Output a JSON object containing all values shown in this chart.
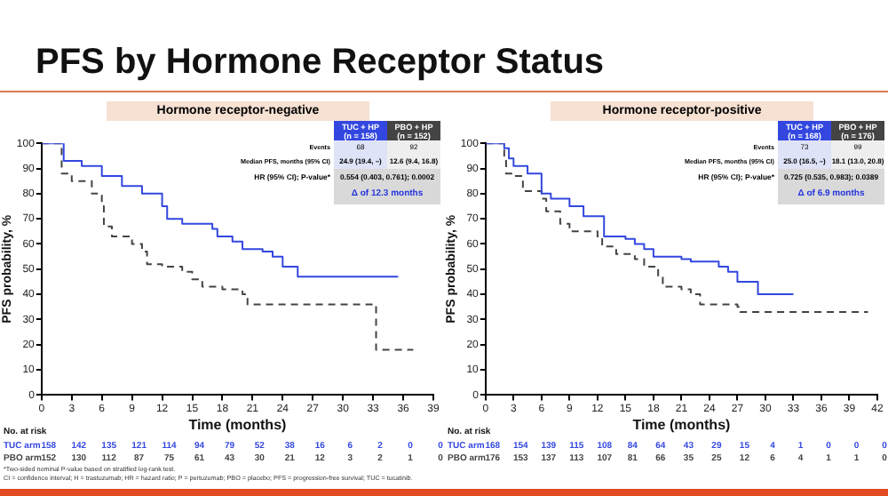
{
  "chart_data": [
    {
      "type": "step",
      "title": "Hormone receptor-negative",
      "xlabel": "Time (months)",
      "ylabel": "PFS probability, %",
      "xlim": [
        0,
        39
      ],
      "xticks": [
        0,
        3,
        6,
        9,
        12,
        15,
        18,
        21,
        24,
        27,
        30,
        33,
        36,
        39
      ],
      "ylim": [
        0,
        100
      ],
      "yticks": [
        0,
        10,
        20,
        30,
        40,
        50,
        60,
        70,
        80,
        90,
        100
      ],
      "grid": false,
      "legend": "top right",
      "series": [
        {
          "name": "TUC + HP (n = 158)",
          "color": "#3347e0",
          "line_style": "solid",
          "x": [
            0,
            2.2,
            4,
            6,
            8,
            10,
            12,
            12.5,
            14,
            17,
            17.5,
            19,
            20,
            22,
            23,
            24,
            25.5,
            35.5
          ],
          "values": [
            100,
            93,
            91,
            87,
            83,
            80,
            75,
            70,
            68,
            66,
            63,
            61,
            58,
            57,
            55,
            51,
            47,
            47
          ]
        },
        {
          "name": "PBO + HP (n = 152)",
          "color": "#444444",
          "line_style": "dashed",
          "x": [
            0,
            2,
            3,
            5,
            6,
            6.2,
            7,
            9,
            10,
            10.5,
            12,
            14,
            15,
            16,
            18,
            20,
            20.5,
            33,
            33.3,
            37
          ],
          "values": [
            100,
            88,
            85,
            80,
            75,
            67,
            63,
            60,
            57,
            52,
            51,
            49,
            46,
            43,
            42,
            40,
            36,
            36,
            18,
            18
          ]
        }
      ],
      "annotations": [
        "Events",
        "68",
        "92",
        "Median PFS, months (95% CI)",
        "24.9 (19.4, –)",
        "12.6 (9.4, 16.8)",
        "HR (95% CI); P-value*",
        "0.554 (0.403, 0.761); 0.0002",
        "Δ of 12.3 months",
        "No. at risk",
        "TUC arm",
        "158 142 135 121 114 94 79 52 38 16 6 2 0 0",
        "PBO arm",
        "152 130 112 87 75 61 43 30 21 12 3 2 1 0",
        "PFS by Hormone Receptor Status"
      ]
    },
    {
      "type": "step",
      "title": "Hormone receptor-positive",
      "xlabel": "Time (months)",
      "ylabel": "PFS probability, %",
      "xlim": [
        0,
        42
      ],
      "xticks": [
        0,
        3,
        6,
        9,
        12,
        15,
        18,
        21,
        24,
        27,
        30,
        33,
        36,
        39,
        42
      ],
      "ylim": [
        0,
        100
      ],
      "yticks": [
        0,
        10,
        20,
        30,
        40,
        50,
        60,
        70,
        80,
        90,
        100
      ],
      "grid": false,
      "legend": "top right",
      "series": [
        {
          "name": "TUC + HP (n = 168)",
          "color": "#3347e0",
          "line_style": "solid",
          "x": [
            0,
            2,
            2.5,
            3,
            4.5,
            6,
            7,
            9,
            10.5,
            12.7,
            15,
            16,
            17,
            18,
            21,
            22,
            25,
            26,
            27,
            29.2,
            33
          ],
          "values": [
            100,
            98,
            94,
            91,
            88,
            80,
            78,
            75,
            71,
            63,
            62,
            60,
            58,
            55,
            54,
            53,
            51,
            49,
            45,
            40,
            40
          ]
        },
        {
          "name": "PBO + HP (n = 176)",
          "color": "#444444",
          "line_style": "dashed",
          "x": [
            0,
            2,
            2.2,
            3,
            4,
            6,
            6.5,
            8,
            9,
            12,
            12.5,
            14,
            16,
            17,
            18.5,
            19,
            21,
            22,
            23,
            27,
            27.3,
            41
          ],
          "values": [
            100,
            95,
            88,
            87,
            81,
            78,
            73,
            68,
            65,
            63,
            59,
            56,
            54,
            51,
            47,
            43,
            42,
            40,
            36,
            35,
            33,
            33
          ]
        }
      ],
      "annotations": [
        "Events",
        "73",
        "99",
        "Median PFS, months (95% CI)",
        "25.0 (16.5, –)",
        "18.1 (13.0, 20.8)",
        "HR (95% CI); P-value*",
        "0.725 (0.535, 0.983); 0.0389",
        "Δ of 6.9 months",
        "No. at risk",
        "TUC arm",
        "168 154 139 115 108 84 64 43 29 15 4 1 0 0 0",
        "PBO arm",
        "176 153 137 113 107 81 66 35 25 12 6 4 1 1 0",
        "*Two-sided nominal P-value based on stratified log-rank test.",
        "CI = confidence interval; H = trastuzumab; HR = hazard ratio; P = pertuzumab; PBO = placebo; PFS = progression-free survival; TUC = tucatinib."
      ]
    }
  ]
}
